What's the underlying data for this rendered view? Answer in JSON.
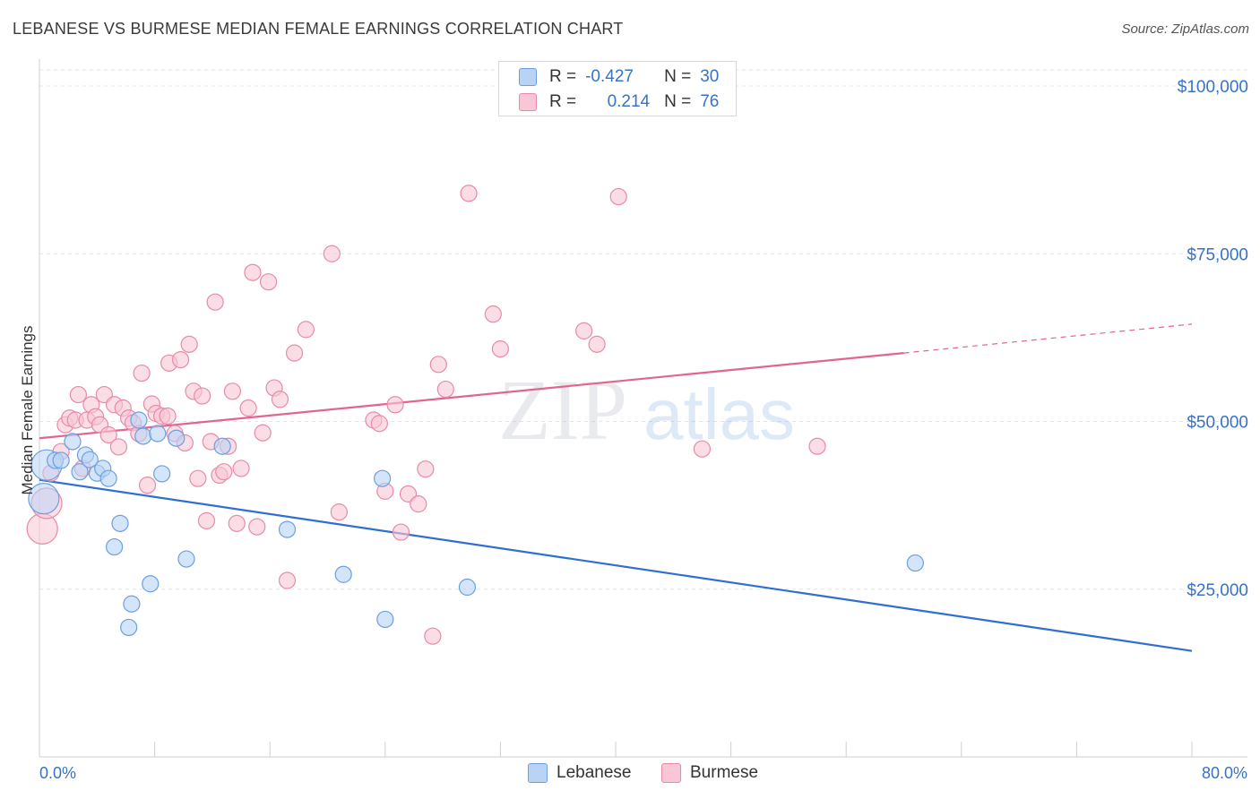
{
  "title": "LEBANESE VS BURMESE MEDIAN FEMALE EARNINGS CORRELATION CHART",
  "source": "Source: ZipAtlas.com",
  "watermark": {
    "zip": "ZIP",
    "atlas": "atlas"
  },
  "stats": {
    "lebanese": {
      "r_label": "R =",
      "r": "-0.427",
      "n_label": "N =",
      "n": "30"
    },
    "burmese": {
      "r_label": "R =",
      "r": "0.214",
      "n_label": "N =",
      "n": "76"
    }
  },
  "legend": {
    "lebanese": "Lebanese",
    "burmese": "Burmese"
  },
  "colors": {
    "lebanese_fill": "#b9d3f5",
    "lebanese_stroke": "#6c9fe0",
    "lebanese_line": "#2f6fd1",
    "burmese_fill": "#f9c6d6",
    "burmese_stroke": "#e88aa8",
    "burmese_line": "#e0668e",
    "axis_text": "#3672c9"
  },
  "chart_data": {
    "type": "scatter",
    "title": "LEBANESE VS BURMESE MEDIAN FEMALE EARNINGS CORRELATION CHART",
    "xlabel": "",
    "ylabel": "Median Female Earnings",
    "xlim": [
      0,
      80
    ],
    "ylim": [
      0,
      105000
    ],
    "x_tick_labels": {
      "left": "0.0%",
      "right": "80.0%"
    },
    "y_ticks": [
      {
        "value": 25000,
        "label": "$25,000"
      },
      {
        "value": 50000,
        "label": "$50,000"
      },
      {
        "value": 75000,
        "label": "$75,000"
      },
      {
        "value": 100000,
        "label": "$100,000"
      }
    ],
    "grid": true,
    "series": [
      {
        "name": "Lebanese",
        "trend": {
          "x0": 0,
          "y0": 41300,
          "x1": 80,
          "y1": 15800
        },
        "points": [
          {
            "x": 0.5,
            "y": 43500,
            "big": true
          },
          {
            "x": 0.3,
            "y": 38500,
            "big": true
          },
          {
            "x": 1.1,
            "y": 44200
          },
          {
            "x": 1.5,
            "y": 44200
          },
          {
            "x": 2.3,
            "y": 47000
          },
          {
            "x": 2.8,
            "y": 42500
          },
          {
            "x": 3.2,
            "y": 45000
          },
          {
            "x": 3.5,
            "y": 44300
          },
          {
            "x": 4.0,
            "y": 42300
          },
          {
            "x": 4.4,
            "y": 43000
          },
          {
            "x": 4.8,
            "y": 41500
          },
          {
            "x": 5.2,
            "y": 31300
          },
          {
            "x": 5.6,
            "y": 34800
          },
          {
            "x": 6.2,
            "y": 19300
          },
          {
            "x": 6.4,
            "y": 22800
          },
          {
            "x": 6.9,
            "y": 50200
          },
          {
            "x": 7.2,
            "y": 47800
          },
          {
            "x": 7.7,
            "y": 25800
          },
          {
            "x": 8.2,
            "y": 48200
          },
          {
            "x": 8.5,
            "y": 42200
          },
          {
            "x": 9.5,
            "y": 47500
          },
          {
            "x": 10.2,
            "y": 29500
          },
          {
            "x": 12.7,
            "y": 46300
          },
          {
            "x": 17.2,
            "y": 33900
          },
          {
            "x": 21.1,
            "y": 27200
          },
          {
            "x": 23.8,
            "y": 41500
          },
          {
            "x": 24.0,
            "y": 20500
          },
          {
            "x": 29.7,
            "y": 25300
          },
          {
            "x": 60.8,
            "y": 28900
          }
        ]
      },
      {
        "name": "Burmese",
        "trend": {
          "x0": 0,
          "y0": 47500,
          "x1": 60,
          "y1": 60200,
          "x_dash_end": 80,
          "y_dash_end": 64500
        },
        "points": [
          {
            "x": 0.2,
            "y": 34000,
            "big": true
          },
          {
            "x": 0.5,
            "y": 37800,
            "big": true
          },
          {
            "x": 0.8,
            "y": 42300
          },
          {
            "x": 1.5,
            "y": 45500
          },
          {
            "x": 1.8,
            "y": 49500
          },
          {
            "x": 2.1,
            "y": 50500
          },
          {
            "x": 2.5,
            "y": 50200
          },
          {
            "x": 2.7,
            "y": 54000
          },
          {
            "x": 3.0,
            "y": 43000
          },
          {
            "x": 3.3,
            "y": 50200
          },
          {
            "x": 3.6,
            "y": 52500
          },
          {
            "x": 3.9,
            "y": 50700
          },
          {
            "x": 4.2,
            "y": 49500
          },
          {
            "x": 4.5,
            "y": 54000
          },
          {
            "x": 4.8,
            "y": 48000
          },
          {
            "x": 5.2,
            "y": 52500
          },
          {
            "x": 5.5,
            "y": 46200
          },
          {
            "x": 5.8,
            "y": 52000
          },
          {
            "x": 6.2,
            "y": 50500
          },
          {
            "x": 6.5,
            "y": 49800
          },
          {
            "x": 6.9,
            "y": 48200
          },
          {
            "x": 7.1,
            "y": 57200
          },
          {
            "x": 7.5,
            "y": 40500
          },
          {
            "x": 7.8,
            "y": 52600
          },
          {
            "x": 8.1,
            "y": 51200
          },
          {
            "x": 8.5,
            "y": 50800
          },
          {
            "x": 8.9,
            "y": 50800
          },
          {
            "x": 9.0,
            "y": 58700
          },
          {
            "x": 9.4,
            "y": 48200
          },
          {
            "x": 9.8,
            "y": 59200
          },
          {
            "x": 10.1,
            "y": 46800
          },
          {
            "x": 10.4,
            "y": 61500
          },
          {
            "x": 10.7,
            "y": 54500
          },
          {
            "x": 11.0,
            "y": 41500
          },
          {
            "x": 11.3,
            "y": 53800
          },
          {
            "x": 11.6,
            "y": 35200
          },
          {
            "x": 11.9,
            "y": 47000
          },
          {
            "x": 12.2,
            "y": 67800
          },
          {
            "x": 12.5,
            "y": 42000
          },
          {
            "x": 12.8,
            "y": 42500
          },
          {
            "x": 13.1,
            "y": 46300
          },
          {
            "x": 13.4,
            "y": 54500
          },
          {
            "x": 13.7,
            "y": 34800
          },
          {
            "x": 14.0,
            "y": 43000
          },
          {
            "x": 14.5,
            "y": 52000
          },
          {
            "x": 14.8,
            "y": 72200
          },
          {
            "x": 15.1,
            "y": 34300
          },
          {
            "x": 15.5,
            "y": 48300
          },
          {
            "x": 15.9,
            "y": 70800
          },
          {
            "x": 16.3,
            "y": 55000
          },
          {
            "x": 16.7,
            "y": 53300
          },
          {
            "x": 17.2,
            "y": 26300
          },
          {
            "x": 17.7,
            "y": 60200
          },
          {
            "x": 18.5,
            "y": 63700
          },
          {
            "x": 20.3,
            "y": 75000
          },
          {
            "x": 20.8,
            "y": 36500
          },
          {
            "x": 23.2,
            "y": 50200
          },
          {
            "x": 23.6,
            "y": 49700
          },
          {
            "x": 24.0,
            "y": 39600
          },
          {
            "x": 24.7,
            "y": 52500
          },
          {
            "x": 25.1,
            "y": 33500
          },
          {
            "x": 25.6,
            "y": 39200
          },
          {
            "x": 26.3,
            "y": 37700
          },
          {
            "x": 26.8,
            "y": 42900
          },
          {
            "x": 27.3,
            "y": 18000
          },
          {
            "x": 27.7,
            "y": 58500
          },
          {
            "x": 28.2,
            "y": 54800
          },
          {
            "x": 29.8,
            "y": 84000
          },
          {
            "x": 31.5,
            "y": 66000
          },
          {
            "x": 32.0,
            "y": 60800
          },
          {
            "x": 37.8,
            "y": 63500
          },
          {
            "x": 38.7,
            "y": 61500
          },
          {
            "x": 40.2,
            "y": 83500
          },
          {
            "x": 46.0,
            "y": 45900
          },
          {
            "x": 54.0,
            "y": 46300
          }
        ]
      }
    ]
  }
}
